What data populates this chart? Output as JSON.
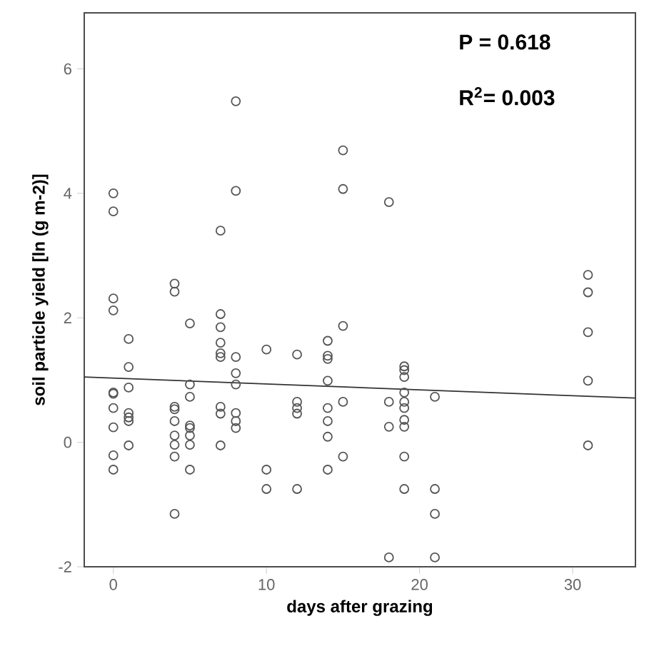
{
  "chart_data": {
    "type": "scatter",
    "xlabel": "days after grazing",
    "ylabel": "soil particle yield [ln (g m-2)]",
    "xlim": [
      -1.9,
      34.1
    ],
    "ylim": [
      -2,
      6.9
    ],
    "xticks": [
      0,
      10,
      20,
      30
    ],
    "yticks": [
      -2,
      0,
      2,
      4,
      6
    ],
    "grid": false,
    "annotations": [
      "P = 0.618",
      "R$^{2}$= 0.003"
    ],
    "series": [
      {
        "color": "#555555",
        "marker": "circle",
        "x": [
          0,
          0,
          0,
          0,
          0,
          0,
          0,
          0,
          0,
          0,
          1,
          1,
          1,
          1,
          1,
          1,
          1,
          4,
          4,
          4,
          4,
          4,
          4,
          4,
          4,
          4,
          5,
          5,
          5,
          5,
          5,
          5,
          5,
          5,
          7,
          7,
          7,
          7,
          7,
          7,
          7,
          7,
          7,
          8,
          8,
          8,
          8,
          8,
          8,
          8,
          8,
          10,
          10,
          10,
          12,
          12,
          12,
          12,
          12,
          14,
          14,
          14,
          14,
          14,
          14,
          14,
          14,
          15,
          15,
          15,
          15,
          15,
          18,
          18,
          18,
          18,
          19,
          19,
          19,
          19,
          19,
          19,
          19,
          19,
          19,
          19,
          21,
          21,
          21,
          21,
          31,
          31,
          31,
          31,
          31
        ],
        "values": [
          4.0,
          3.71,
          2.31,
          2.12,
          0.8,
          0.78,
          0.55,
          0.24,
          -0.21,
          -0.44,
          1.66,
          1.21,
          0.88,
          0.47,
          0.4,
          0.34,
          -0.05,
          2.55,
          2.42,
          0.57,
          0.53,
          0.34,
          0.11,
          -0.04,
          -0.23,
          -1.15,
          1.91,
          0.93,
          0.73,
          0.27,
          0.23,
          0.11,
          -0.04,
          -0.44,
          3.4,
          2.06,
          1.85,
          1.6,
          1.43,
          1.37,
          0.57,
          0.46,
          -0.05,
          5.48,
          4.04,
          1.37,
          1.11,
          0.93,
          0.47,
          0.34,
          0.23,
          1.49,
          -0.44,
          -0.75,
          1.41,
          0.65,
          0.55,
          0.46,
          -0.75,
          1.63,
          1.39,
          1.34,
          0.99,
          0.55,
          0.34,
          0.09,
          -0.44,
          4.69,
          4.07,
          1.87,
          0.65,
          -0.23,
          3.86,
          0.65,
          0.25,
          -1.85,
          1.22,
          1.16,
          1.05,
          0.8,
          0.65,
          0.55,
          0.36,
          0.25,
          -0.23,
          -0.75,
          0.73,
          -0.75,
          -1.15,
          -1.85,
          2.69,
          2.41,
          1.77,
          0.99,
          -0.05
        ]
      },
      {
        "type": "line",
        "color": "#333333",
        "marker": "none",
        "x": [
          -1.9,
          34.1
        ],
        "values": [
          1.05,
          0.71
        ]
      }
    ]
  }
}
